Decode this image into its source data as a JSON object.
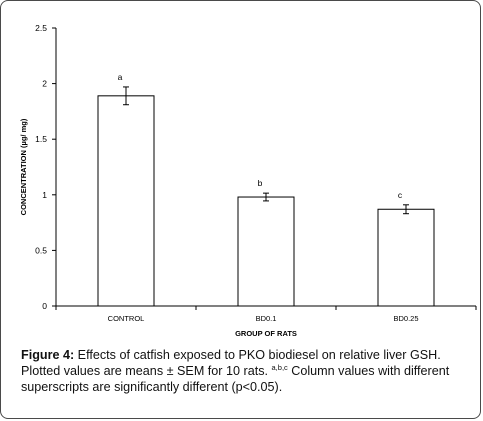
{
  "chart_data": {
    "type": "bar",
    "categories": [
      "CONTROL",
      "BD0.1",
      "BD0.25"
    ],
    "values": [
      1.89,
      0.98,
      0.87
    ],
    "errors": [
      0.08,
      0.035,
      0.04
    ],
    "superscripts": [
      "a",
      "b",
      "c"
    ],
    "xlabel": "GROUP OF RATS",
    "ylabel": "CONCENTRATION (µg/ mg)",
    "ylim": [
      0,
      2.5
    ],
    "yticks": [
      0,
      0.5,
      1,
      1.5,
      2,
      2.5
    ],
    "ytick_labels": [
      "0",
      "0.5",
      "1",
      "1.5",
      "2",
      "2.5"
    ],
    "grid": false,
    "bar_fill": "#ffffff",
    "bar_stroke": "#000000"
  },
  "caption": {
    "label": "Figure 4:",
    "text1": " Effects of catfish exposed to PKO biodiesel on relative liver GSH. Plotted values are means ± SEM for 10 rats. ",
    "superscript": "a,b,c",
    "text2": " Column values with different superscripts are significantly different (p<0.05)."
  }
}
